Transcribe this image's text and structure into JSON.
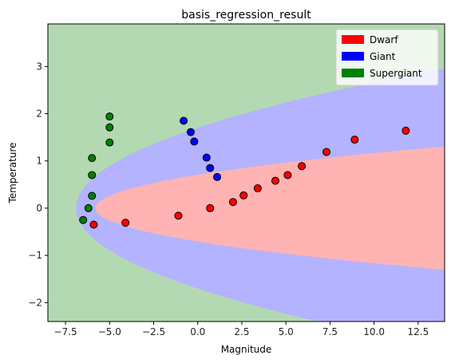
{
  "chart_data": {
    "type": "scatter",
    "title": "basis_regression_result",
    "xlabel": "Magnitude",
    "ylabel": "Temperature",
    "xlim": [
      -8.5,
      14.0
    ],
    "ylim": [
      -2.4,
      3.9
    ],
    "x_ticks": [
      -7.5,
      -5.0,
      -2.5,
      0.0,
      2.5,
      5.0,
      7.5,
      10.0,
      12.5
    ],
    "x_tick_labels": [
      "−7.5",
      "−5.0",
      "−2.5",
      "0.0",
      "2.5",
      "5.0",
      "7.5",
      "10.0",
      "12.5"
    ],
    "y_ticks": [
      -2,
      -1,
      0,
      1,
      2,
      3
    ],
    "y_tick_labels": [
      "−2",
      "−1",
      "0",
      "1",
      "2",
      "3"
    ],
    "grid": false,
    "legend_position": "top-right",
    "legend": [
      {
        "label": "Dwarf",
        "color": "#ff0000"
      },
      {
        "label": "Giant",
        "color": "#0000ff"
      },
      {
        "label": "Supergiant",
        "color": "#008000"
      }
    ],
    "decision_regions": {
      "colors": {
        "Dwarf": "#ffb3b3",
        "Giant": "#b3b3ff",
        "Supergiant": "#b3d9b3"
      },
      "dwarf_boundary": {
        "vertex_x": -5.8,
        "k": 0.0863
      },
      "giant_boundary": {
        "vertex_x": -6.9,
        "k": 0.42
      }
    },
    "series": [
      {
        "name": "Dwarf",
        "color": "#ff0000",
        "points": [
          [
            -5.9,
            -0.35
          ],
          [
            -4.1,
            -0.31
          ],
          [
            -1.1,
            -0.16
          ],
          [
            0.7,
            0.0
          ],
          [
            2.0,
            0.13
          ],
          [
            2.6,
            0.27
          ],
          [
            3.4,
            0.42
          ],
          [
            4.4,
            0.58
          ],
          [
            5.1,
            0.7
          ],
          [
            5.9,
            0.89
          ],
          [
            7.3,
            1.19
          ],
          [
            8.9,
            1.45
          ],
          [
            11.8,
            1.64
          ]
        ]
      },
      {
        "name": "Giant",
        "color": "#0000ff",
        "points": [
          [
            -0.8,
            1.85
          ],
          [
            -0.4,
            1.61
          ],
          [
            -0.2,
            1.41
          ],
          [
            0.5,
            1.07
          ],
          [
            0.7,
            0.85
          ],
          [
            1.1,
            0.66
          ]
        ]
      },
      {
        "name": "Supergiant",
        "color": "#008000",
        "points": [
          [
            -5.0,
            1.94
          ],
          [
            -5.0,
            1.71
          ],
          [
            -5.0,
            1.39
          ],
          [
            -6.0,
            1.06
          ],
          [
            -6.0,
            0.7
          ],
          [
            -6.0,
            0.26
          ],
          [
            -6.2,
            0.0
          ],
          [
            -6.5,
            -0.25
          ]
        ]
      }
    ]
  }
}
